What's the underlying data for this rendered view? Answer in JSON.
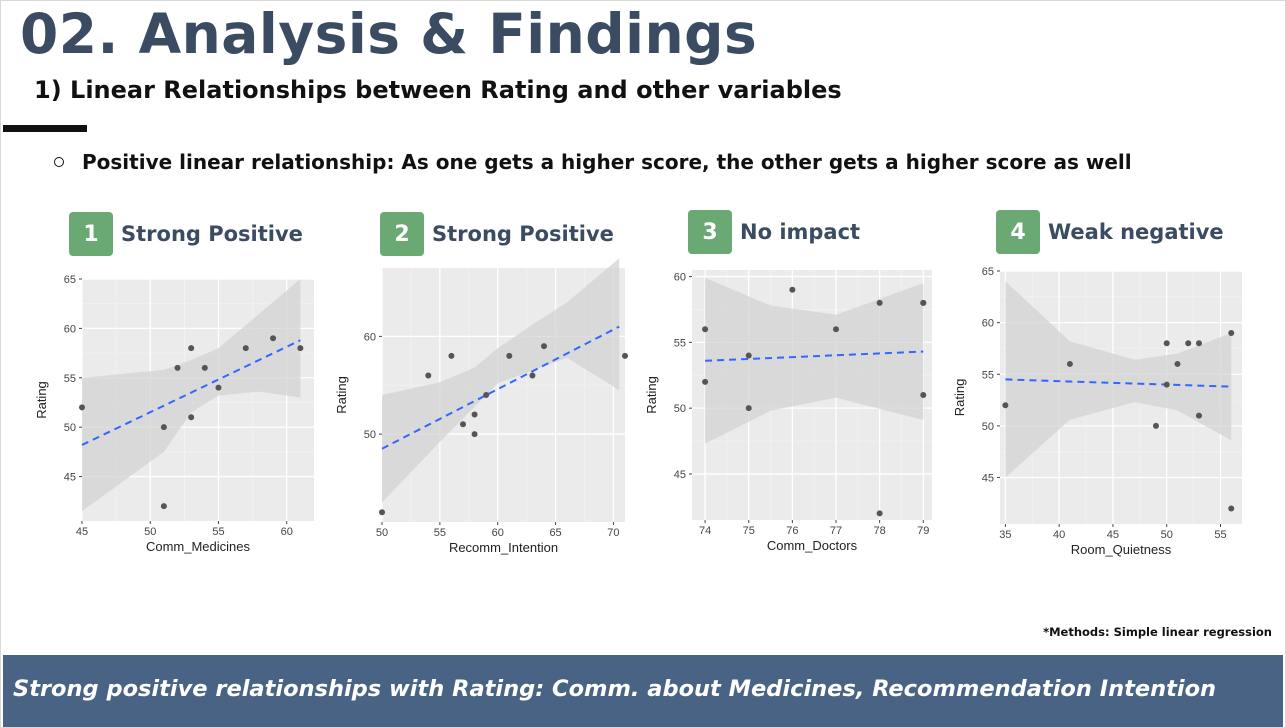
{
  "slide": {
    "title": "02. Analysis & Findings",
    "subtitle": "1) Linear Relationships between Rating and other variables",
    "bullet": "Positive linear relationship: As one gets a higher score, the other gets a higher score as well",
    "note": "*Methods: Simple linear regression",
    "footer": "Strong positive relationships with Rating: Comm. about Medicines, Recommendation Intention"
  },
  "panels": [
    {
      "number": "1",
      "label": "Strong Positive"
    },
    {
      "number": "2",
      "label": "Strong Positive"
    },
    {
      "number": "3",
      "label": "No impact"
    },
    {
      "number": "4",
      "label": "Weak negative"
    }
  ],
  "colors": {
    "title": "#3a4b62",
    "badge": "#6aa874",
    "footer_bg": "#486383",
    "panel_bg": "#ebebeb",
    "confidence_band": "#d3d3d3",
    "fit_line": "#3366ff",
    "points": "#555555"
  },
  "chart_data": [
    {
      "type": "scatter",
      "xlabel": "Comm_Medicines",
      "ylabel": "Rating",
      "xlim": [
        45,
        62
      ],
      "ylim": [
        40.5,
        65
      ],
      "xticks": [
        45,
        50,
        55,
        60
      ],
      "yticks": [
        45,
        50,
        55,
        60,
        65
      ],
      "points": [
        [
          45,
          52
        ],
        [
          51,
          50
        ],
        [
          51,
          42
        ],
        [
          52,
          56
        ],
        [
          53,
          58
        ],
        [
          53,
          51
        ],
        [
          54,
          56
        ],
        [
          55,
          54
        ],
        [
          57,
          58
        ],
        [
          59,
          59
        ],
        [
          61,
          58
        ]
      ],
      "fit": {
        "x": [
          45,
          61
        ],
        "y": [
          48.2,
          58.8
        ]
      },
      "band": {
        "x": [
          45,
          51,
          53,
          55,
          58,
          61
        ],
        "upper": [
          55.0,
          55.8,
          56.8,
          58.0,
          61.5,
          65.0
        ],
        "lower": [
          41.5,
          47.5,
          51.5,
          53.2,
          53.6,
          53.0
        ]
      }
    },
    {
      "type": "scatter",
      "xlabel": "Recomm_Intention",
      "ylabel": "Rating",
      "xlim": [
        50,
        71
      ],
      "ylim": [
        41,
        67
      ],
      "xticks": [
        50,
        55,
        60,
        65,
        70
      ],
      "yticks": [
        50,
        60
      ],
      "points": [
        [
          50,
          42
        ],
        [
          54,
          56
        ],
        [
          56,
          58
        ],
        [
          57,
          51
        ],
        [
          58,
          50
        ],
        [
          58,
          52
        ],
        [
          59,
          54
        ],
        [
          61,
          58
        ],
        [
          63,
          56
        ],
        [
          64,
          59
        ],
        [
          71,
          58
        ]
      ],
      "fit": {
        "x": [
          50,
          70.5
        ],
        "y": [
          48.5,
          61.0
        ]
      },
      "band": {
        "x": [
          50,
          55,
          58,
          60,
          63,
          66,
          70.5
        ],
        "upper": [
          54.0,
          55.3,
          56.8,
          58.8,
          61.2,
          63.5,
          68.0
        ],
        "lower": [
          43.0,
          49.2,
          52.8,
          55.2,
          56.5,
          57.8,
          54.5
        ]
      }
    },
    {
      "type": "scatter",
      "xlabel": "Comm_Doctors",
      "ylabel": "Rating",
      "xlim": [
        73.7,
        79.2
      ],
      "ylim": [
        41.5,
        60.5
      ],
      "xticks": [
        74,
        75,
        76,
        77,
        78,
        79
      ],
      "yticks": [
        45,
        50,
        55,
        60
      ],
      "points": [
        [
          74,
          56
        ],
        [
          74,
          52
        ],
        [
          75,
          54
        ],
        [
          75,
          50
        ],
        [
          76,
          59
        ],
        [
          77,
          56
        ],
        [
          78,
          58
        ],
        [
          78,
          42
        ],
        [
          79,
          58
        ],
        [
          79,
          58
        ],
        [
          79,
          51
        ]
      ],
      "fit": {
        "x": [
          74,
          79
        ],
        "y": [
          53.6,
          54.3
        ]
      },
      "band": {
        "x": [
          74,
          75.5,
          77,
          79
        ],
        "upper": [
          59.9,
          57.8,
          57.1,
          59.5
        ],
        "lower": [
          47.3,
          49.8,
          50.8,
          49.1
        ]
      }
    },
    {
      "type": "scatter",
      "xlabel": "Room_Quietness",
      "ylabel": "Rating",
      "xlim": [
        34.5,
        57
      ],
      "ylim": [
        40.5,
        65
      ],
      "xticks": [
        35,
        40,
        45,
        50,
        55
      ],
      "yticks": [
        45,
        50,
        55,
        60,
        65
      ],
      "points": [
        [
          35,
          52
        ],
        [
          41,
          56
        ],
        [
          49,
          50
        ],
        [
          50,
          54
        ],
        [
          50,
          58
        ],
        [
          51,
          56
        ],
        [
          52,
          58
        ],
        [
          53,
          58
        ],
        [
          53,
          51
        ],
        [
          56,
          59
        ],
        [
          56,
          42
        ]
      ],
      "fit": {
        "x": [
          35,
          56
        ],
        "y": [
          54.5,
          53.8
        ]
      },
      "band": {
        "x": [
          35,
          41,
          47,
          51,
          56
        ],
        "upper": [
          64.0,
          58.2,
          56.4,
          57.0,
          59.0
        ],
        "lower": [
          45.0,
          50.6,
          52.3,
          51.5,
          48.6
        ]
      }
    }
  ]
}
